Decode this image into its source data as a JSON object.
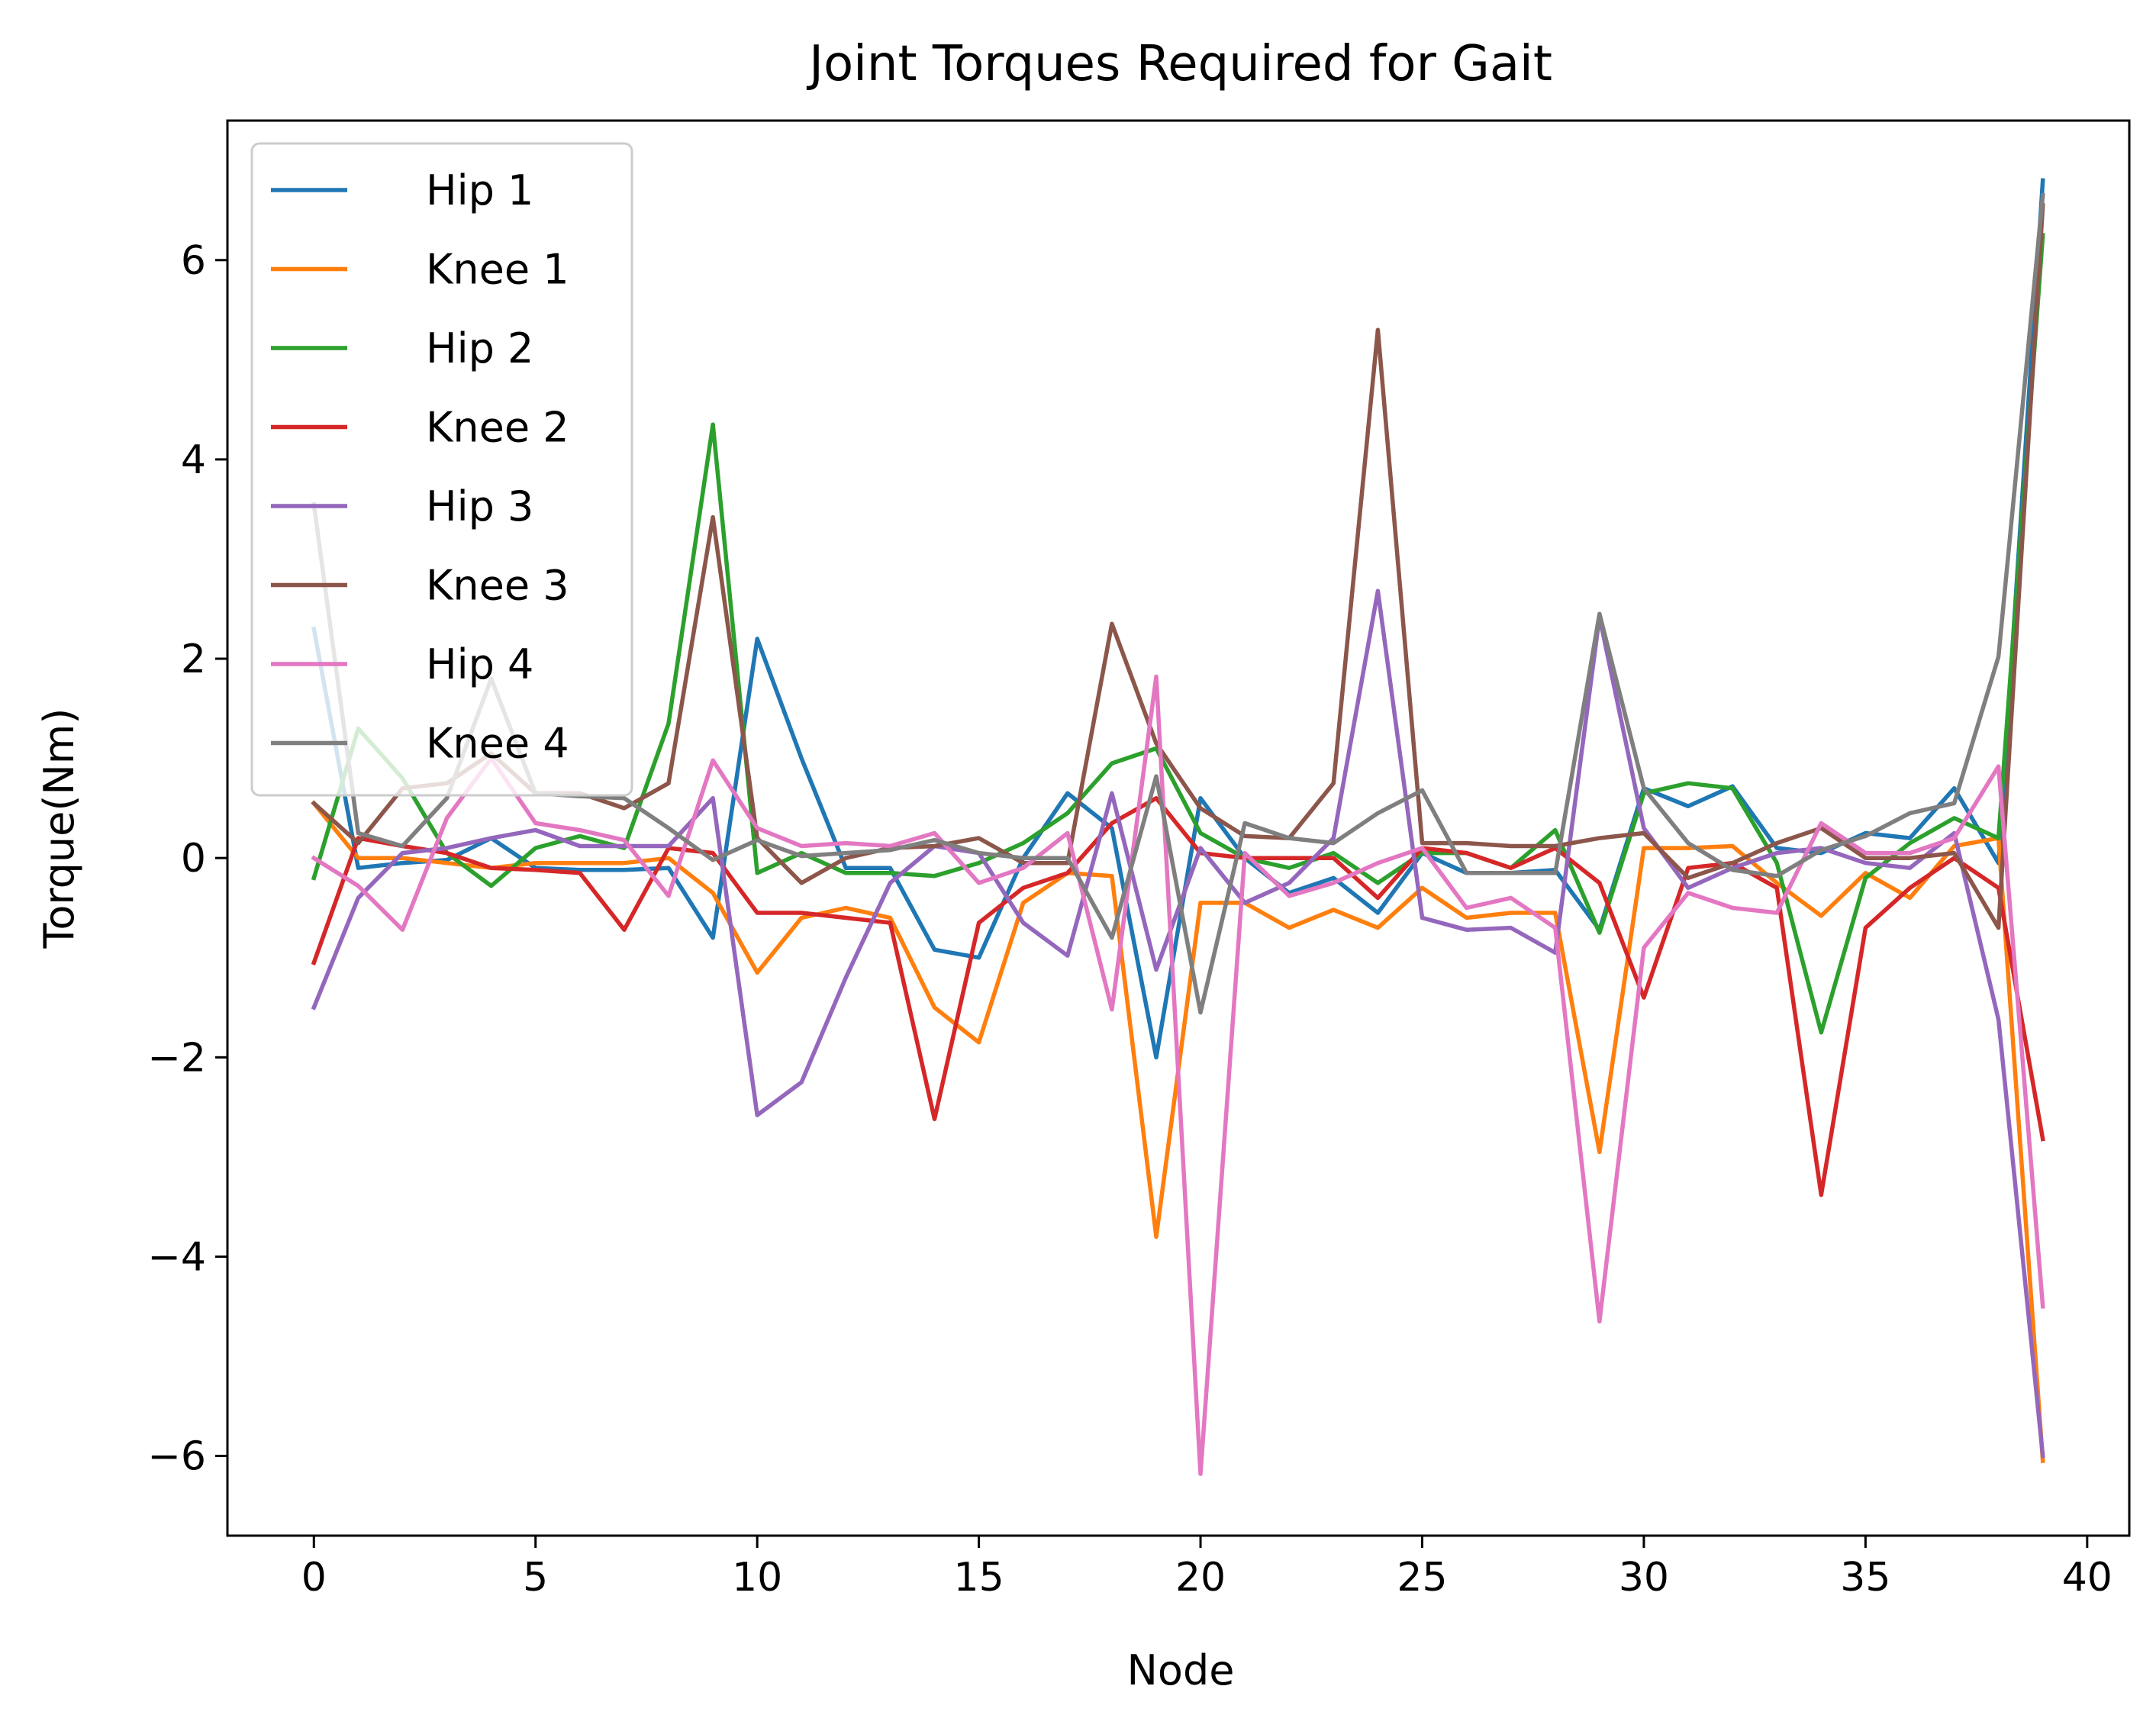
{
  "chart_data": {
    "type": "line",
    "title": "Joint Torques Required for Gait",
    "xlabel": "Node",
    "ylabel": "Torque(Nm)",
    "xlim": [
      -1.95,
      40.95
    ],
    "ylim": [
      -6.8,
      7.4
    ],
    "xticks": [
      0,
      5,
      10,
      15,
      20,
      25,
      30,
      35,
      40
    ],
    "yticks": [
      -6,
      -4,
      -2,
      0,
      2,
      4,
      6
    ],
    "ytick_labels": [
      "−6",
      "−4",
      "−2",
      "0",
      "2",
      "4",
      "6"
    ],
    "grid": false,
    "legend_position": "upper-left",
    "x": [
      0,
      1,
      2,
      3,
      4,
      5,
      6,
      7,
      8,
      9,
      10,
      11,
      12,
      13,
      14,
      15,
      16,
      17,
      18,
      19,
      20,
      21,
      22,
      23,
      24,
      25,
      26,
      27,
      28,
      29,
      30,
      31,
      32,
      33,
      34,
      35,
      36,
      37,
      38,
      39
    ],
    "series": [
      {
        "name": "Hip 1",
        "color": "#1f77b4",
        "values": [
          2.3,
          -0.1,
          -0.05,
          -0.02,
          0.2,
          -0.1,
          -0.12,
          -0.12,
          -0.1,
          -0.8,
          2.2,
          1.0,
          -0.1,
          -0.1,
          -0.92,
          -1.0,
          0.0,
          0.65,
          0.3,
          -2.0,
          0.6,
          0.0,
          -0.35,
          -0.2,
          -0.55,
          0.05,
          -0.15,
          -0.15,
          -0.12,
          -0.72,
          0.7,
          0.52,
          0.72,
          0.1,
          0.05,
          0.25,
          0.2,
          0.7,
          -0.05,
          6.8
        ]
      },
      {
        "name": "Knee 1",
        "color": "#ff7f0e",
        "values": [
          0.55,
          0.0,
          0.0,
          -0.05,
          -0.1,
          -0.05,
          -0.05,
          -0.05,
          0.0,
          -0.35,
          -1.15,
          -0.6,
          -0.5,
          -0.6,
          -1.5,
          -1.85,
          -0.45,
          -0.15,
          -0.18,
          -3.8,
          -0.45,
          -0.45,
          -0.7,
          -0.52,
          -0.7,
          -0.3,
          -0.6,
          -0.55,
          -0.55,
          -2.95,
          0.1,
          0.1,
          0.12,
          -0.25,
          -0.58,
          -0.15,
          -0.4,
          0.12,
          0.2,
          -6.05
        ]
      },
      {
        "name": "Hip 2",
        "color": "#2ca02c",
        "values": [
          -0.2,
          1.3,
          0.8,
          0.05,
          -0.28,
          0.1,
          0.22,
          0.1,
          1.35,
          4.35,
          -0.15,
          0.05,
          -0.15,
          -0.15,
          -0.18,
          -0.05,
          0.15,
          0.45,
          0.95,
          1.1,
          0.25,
          0.0,
          -0.1,
          0.05,
          -0.25,
          0.05,
          0.05,
          -0.1,
          0.28,
          -0.75,
          0.65,
          0.75,
          0.7,
          -0.05,
          -1.75,
          -0.2,
          0.15,
          0.4,
          0.2,
          6.25
        ]
      },
      {
        "name": "Knee 2",
        "color": "#d62728",
        "values": [
          -1.05,
          0.2,
          0.12,
          0.05,
          -0.1,
          -0.12,
          -0.15,
          -0.72,
          0.1,
          0.05,
          -0.55,
          -0.55,
          -0.6,
          -0.65,
          -2.62,
          -0.65,
          -0.3,
          -0.15,
          0.35,
          0.6,
          0.05,
          0.0,
          0.0,
          0.0,
          -0.4,
          0.1,
          0.05,
          -0.1,
          0.1,
          -0.25,
          -1.4,
          -0.1,
          -0.05,
          -0.3,
          -3.38,
          -0.7,
          -0.3,
          0.0,
          -0.3,
          -2.82
        ]
      },
      {
        "name": "Hip 3",
        "color": "#9467bd",
        "values": [
          -1.5,
          -0.4,
          0.05,
          0.1,
          0.2,
          0.28,
          0.12,
          0.12,
          0.12,
          0.6,
          -2.58,
          -2.25,
          -1.2,
          -0.25,
          0.12,
          0.05,
          -0.65,
          -0.98,
          0.65,
          -1.12,
          0.1,
          -0.45,
          -0.25,
          0.2,
          2.68,
          -0.6,
          -0.72,
          -0.7,
          -0.95,
          2.42,
          0.3,
          -0.3,
          -0.1,
          0.05,
          0.1,
          -0.05,
          -0.1,
          0.25,
          -1.62,
          -6.0
        ]
      },
      {
        "name": "Knee 3",
        "color": "#8c564b",
        "values": [
          0.55,
          0.15,
          0.7,
          0.75,
          1.05,
          0.65,
          0.65,
          0.5,
          0.75,
          3.42,
          0.2,
          -0.25,
          0.0,
          0.1,
          0.12,
          0.2,
          -0.05,
          -0.05,
          2.35,
          1.15,
          0.5,
          0.22,
          0.2,
          0.75,
          5.3,
          0.15,
          0.15,
          0.12,
          0.12,
          0.2,
          0.25,
          -0.2,
          -0.05,
          0.15,
          0.3,
          0.0,
          0.0,
          0.05,
          -0.7,
          6.55
        ]
      },
      {
        "name": "Hip 4",
        "color": "#e377c2",
        "values": [
          0.0,
          -0.28,
          -0.72,
          0.4,
          1.0,
          0.35,
          0.28,
          0.18,
          -0.38,
          0.98,
          0.3,
          0.12,
          0.15,
          0.12,
          0.25,
          -0.25,
          -0.1,
          0.25,
          -1.52,
          1.82,
          -6.18,
          0.05,
          -0.38,
          -0.25,
          -0.05,
          0.1,
          -0.5,
          -0.4,
          -0.7,
          -4.65,
          -0.9,
          -0.35,
          -0.5,
          -0.55,
          0.35,
          0.05,
          0.05,
          0.2,
          0.92,
          -4.5
        ]
      },
      {
        "name": "Knee 4",
        "color": "#7f7f7f",
        "values": [
          3.55,
          0.25,
          0.12,
          0.6,
          1.8,
          0.65,
          0.62,
          0.6,
          0.3,
          -0.02,
          0.18,
          0.02,
          0.05,
          0.08,
          0.18,
          0.05,
          0.0,
          0.0,
          -0.8,
          0.82,
          -1.55,
          0.35,
          0.2,
          0.15,
          0.45,
          0.68,
          -0.15,
          -0.15,
          -0.15,
          2.45,
          0.7,
          0.15,
          -0.12,
          -0.18,
          0.08,
          0.22,
          0.45,
          0.55,
          2.02,
          6.65
        ]
      }
    ]
  }
}
